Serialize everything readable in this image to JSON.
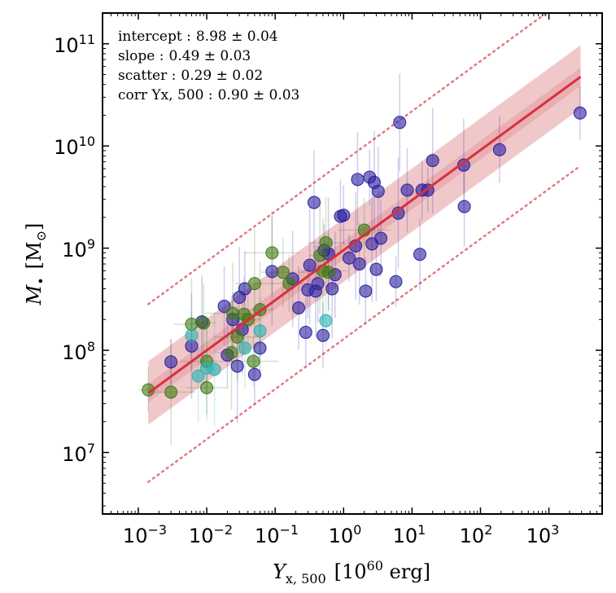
{
  "chart_data": {
    "type": "scatter",
    "xscale": "log",
    "yscale": "log",
    "xlabel": {
      "var": "Y",
      "sub": "x, 500",
      "unit_pre": "[10",
      "unit_exp": "60",
      "unit_post": " erg]"
    },
    "ylabel": {
      "var": "M",
      "sub": "•",
      "unit": "[M",
      "unit_sym": "⊙",
      "unit_close": "]"
    },
    "xlim": [
      0.0003,
      6000
    ],
    "ylim": [
      2500000,
      200000000000
    ],
    "xticks": [
      {
        "base": "10",
        "exp": "−3",
        "value": 0.001
      },
      {
        "base": "10",
        "exp": "−2",
        "value": 0.01
      },
      {
        "base": "10",
        "exp": "−1",
        "value": 0.1
      },
      {
        "base": "10",
        "exp": "0",
        "value": 1
      },
      {
        "base": "10",
        "exp": "1",
        "value": 10
      },
      {
        "base": "10",
        "exp": "2",
        "value": 100
      },
      {
        "base": "10",
        "exp": "3",
        "value": 1000
      }
    ],
    "yticks": [
      {
        "base": "10",
        "exp": "7",
        "value": 10000000
      },
      {
        "base": "10",
        "exp": "8",
        "value": 100000000
      },
      {
        "base": "10",
        "exp": "9",
        "value": 1000000000
      },
      {
        "base": "10",
        "exp": "10",
        "value": 10000000000
      },
      {
        "base": "10",
        "exp": "11",
        "value": 100000000000
      }
    ],
    "annotations": [
      {
        "label": "intercept :",
        "value": "8.98 ± 0.04"
      },
      {
        "label": "slope :",
        "value": "0.49 ± 0.03"
      },
      {
        "label": "scatter :",
        "value": "0.29 ± 0.02"
      },
      {
        "label": "corr Yx, 500 :",
        "value": "0.90 ± 0.03"
      }
    ],
    "fit": {
      "intercept": 8.98,
      "slope": 0.49,
      "scatter": 0.29,
      "color": "#d6303f",
      "x_range": [
        0.0014,
        2900
      ],
      "outer_band_dex": 0.31,
      "inner_band_dex": 0.09,
      "dotted_offset_dex": 0.87
    },
    "colors": {
      "blue": "#2a1fa0",
      "green": "#3d7a10",
      "cyan": "#27b3b3",
      "fit": "#d6303f",
      "band": "#e39a9f"
    },
    "series": [
      {
        "name": "blue",
        "color": "#2a1fa0",
        "points": [
          [
            0.003,
            77000000
          ],
          [
            0.006,
            110000000
          ],
          [
            0.0085,
            190000000
          ],
          [
            0.018,
            270000000
          ],
          [
            0.02,
            90000000
          ],
          [
            0.024,
            200000000
          ],
          [
            0.028,
            70000000
          ],
          [
            0.03,
            330000000
          ],
          [
            0.033,
            160000000
          ],
          [
            0.036,
            400000000
          ],
          [
            0.05,
            58000000
          ],
          [
            0.06,
            105000000
          ],
          [
            0.09,
            590000000
          ],
          [
            0.18,
            500000000
          ],
          [
            0.22,
            260000000
          ],
          [
            0.28,
            150000000
          ],
          [
            0.3,
            390000000
          ],
          [
            0.32,
            680000000
          ],
          [
            0.37,
            2800000000
          ],
          [
            0.39,
            380000000
          ],
          [
            0.42,
            450000000
          ],
          [
            0.5,
            140000000
          ],
          [
            0.52,
            950000000
          ],
          [
            0.6,
            880000000
          ],
          [
            0.68,
            400000000
          ],
          [
            0.75,
            550000000
          ],
          [
            0.9,
            2050000000
          ],
          [
            1.0,
            2100000000
          ],
          [
            1.2,
            800000000
          ],
          [
            1.5,
            1050000000
          ],
          [
            1.6,
            4700000000
          ],
          [
            1.7,
            700000000
          ],
          [
            2.1,
            380000000
          ],
          [
            2.4,
            4950000000
          ],
          [
            2.6,
            1100000000
          ],
          [
            2.8,
            4400000000
          ],
          [
            3.2,
            3600000000
          ],
          [
            3.5,
            1250000000
          ],
          [
            3.0,
            620000000
          ],
          [
            5.8,
            470000000
          ],
          [
            6.3,
            2200000000
          ],
          [
            6.6,
            17000000000
          ],
          [
            8.5,
            3700000000
          ],
          [
            13.0,
            870000000
          ],
          [
            14.0,
            3700000000
          ],
          [
            17.0,
            3700000000
          ],
          [
            20.0,
            7200000000
          ],
          [
            57.0,
            6500000000
          ],
          [
            58.0,
            2550000000
          ],
          [
            190.0,
            9200000000
          ],
          [
            2850.0,
            21000000000
          ]
        ]
      },
      {
        "name": "green",
        "color": "#3d7a10",
        "points": [
          [
            0.0014,
            41000000
          ],
          [
            0.003,
            39000000
          ],
          [
            0.006,
            180000000
          ],
          [
            0.009,
            185000000
          ],
          [
            0.01,
            78000000
          ],
          [
            0.01,
            43000000
          ],
          [
            0.023,
            95000000
          ],
          [
            0.024,
            230000000
          ],
          [
            0.028,
            135000000
          ],
          [
            0.035,
            225000000
          ],
          [
            0.04,
            200000000
          ],
          [
            0.048,
            78000000
          ],
          [
            0.05,
            450000000
          ],
          [
            0.06,
            250000000
          ],
          [
            0.09,
            900000000
          ],
          [
            0.13,
            580000000
          ],
          [
            0.16,
            450000000
          ],
          [
            0.45,
            850000000
          ],
          [
            0.5,
            600000000
          ],
          [
            0.55,
            1130000000
          ],
          [
            0.6,
            580000000
          ],
          [
            2.0,
            1500000000
          ]
        ]
      },
      {
        "name": "cyan",
        "color": "#27b3b3",
        "points": [
          [
            0.006,
            140000000
          ],
          [
            0.01,
            67000000
          ],
          [
            0.0075,
            56000000
          ],
          [
            0.036,
            105000000
          ],
          [
            0.06,
            155000000
          ],
          [
            0.55,
            195000000
          ],
          [
            0.013,
            65000000
          ]
        ]
      }
    ]
  }
}
